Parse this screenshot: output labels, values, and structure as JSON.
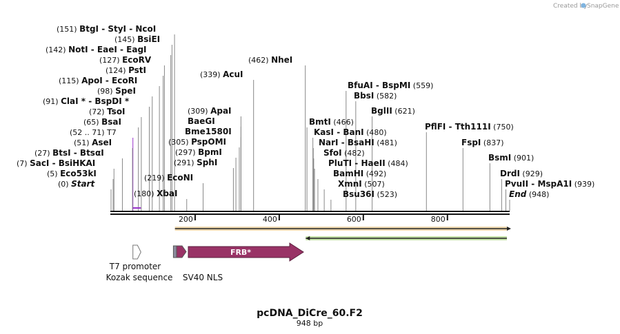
{
  "plasmid": {
    "name": "pcDNA_DiCre_60.F2",
    "length_label": "948 bp"
  },
  "credit": {
    "text": "Created by",
    "brand": "SnapGene"
  },
  "sequence_length": 948,
  "ruler": {
    "ticks": [
      200,
      400,
      600,
      800
    ]
  },
  "left_sites": [
    {
      "pos": "(151)",
      "labels": [
        "BtgI",
        "StyI",
        "NcoI"
      ],
      "site": 151
    },
    {
      "pos": "(145)",
      "labels": [
        "BsiEI"
      ],
      "site": 145
    },
    {
      "pos": "(142)",
      "labels": [
        "NotI",
        "EaeI",
        "EagI"
      ],
      "site": 142
    },
    {
      "pos": "(127)",
      "labels": [
        "EcoRV"
      ],
      "site": 127
    },
    {
      "pos": "(124)",
      "labels": [
        "PstI"
      ],
      "site": 124
    },
    {
      "pos": "(115)",
      "labels": [
        "ApoI",
        "EcoRI"
      ],
      "site": 115
    },
    {
      "pos": "(98)",
      "labels": [
        "SpeI"
      ],
      "site": 98
    },
    {
      "pos": "(91)",
      "labels": [
        "ClaI *",
        "BspDI *"
      ],
      "site": 91
    },
    {
      "pos": "(72)",
      "labels": [
        "TsoI"
      ],
      "site": 72
    },
    {
      "pos": "(65)",
      "labels": [
        "BsaI"
      ],
      "site": 65
    },
    {
      "pos": "(52 .. 71)",
      "labels": [
        "T7"
      ],
      "site": 52,
      "primer": true
    },
    {
      "pos": "(51)",
      "labels": [
        "AseI"
      ],
      "site": 51
    },
    {
      "pos": "(27)",
      "labels": [
        "BtsI",
        "BtsαI"
      ],
      "site": 27
    },
    {
      "pos": "(7)",
      "labels": [
        "SacI",
        "BsiHKAI"
      ],
      "site": 7
    },
    {
      "pos": "(5)",
      "labels": [
        "Eco53kI"
      ],
      "site": 5
    },
    {
      "pos": "(0)",
      "labels": [
        "Start"
      ],
      "site": 0,
      "italic": true
    }
  ],
  "mid_sites": [
    {
      "pos": "(462)",
      "labels": [
        "NheI"
      ],
      "site": 462,
      "side": "left"
    },
    {
      "pos": "(339)",
      "labels": [
        "AcuI"
      ],
      "site": 339,
      "side": "left"
    },
    {
      "pos": "(309)",
      "labels": [
        "ApaI"
      ],
      "site": 309,
      "side": "left"
    },
    {
      "pos": "",
      "labels": [
        "BaeGI"
      ],
      "site": 309,
      "side": "left"
    },
    {
      "pos": "",
      "labels": [
        "Bme1580I"
      ],
      "site": 309,
      "side": "left"
    },
    {
      "pos": "(305)",
      "labels": [
        "PspOMI"
      ],
      "site": 305,
      "side": "left"
    },
    {
      "pos": "(297)",
      "labels": [
        "BpmI"
      ],
      "site": 297,
      "side": "left"
    },
    {
      "pos": "(291)",
      "labels": [
        "SphI"
      ],
      "site": 291,
      "side": "left"
    },
    {
      "pos": "(219)",
      "labels": [
        "EcoNI"
      ],
      "site": 219,
      "side": "left"
    },
    {
      "pos": "(180)",
      "labels": [
        "XbaI"
      ],
      "site": 180,
      "side": "left"
    }
  ],
  "right_sites": [
    {
      "pos": "(559)",
      "labels": [
        "BfuAI",
        "BspMI"
      ],
      "site": 559
    },
    {
      "pos": "(582)",
      "labels": [
        "BbsI"
      ],
      "site": 582
    },
    {
      "pos": "(621)",
      "labels": [
        "BglII"
      ],
      "site": 621
    },
    {
      "pos": "(466)",
      "labels": [
        "BmtI"
      ],
      "site": 466
    },
    {
      "pos": "(480)",
      "labels": [
        "KasI",
        "BanI"
      ],
      "site": 480
    },
    {
      "pos": "(481)",
      "labels": [
        "NarI",
        "BsaHI"
      ],
      "site": 481
    },
    {
      "pos": "(482)",
      "labels": [
        "SfoI"
      ],
      "site": 482
    },
    {
      "pos": "(484)",
      "labels": [
        "PluTI",
        "HaeII"
      ],
      "site": 484
    },
    {
      "pos": "(492)",
      "labels": [
        "BamHI"
      ],
      "site": 492
    },
    {
      "pos": "(507)",
      "labels": [
        "XmnI"
      ],
      "site": 507
    },
    {
      "pos": "(523)",
      "labels": [
        "Bsu36I"
      ],
      "site": 523
    },
    {
      "pos": "(750)",
      "labels": [
        "PflFI",
        "Tth111I"
      ],
      "site": 750
    },
    {
      "pos": "(837)",
      "labels": [
        "FspI"
      ],
      "site": 837
    },
    {
      "pos": "(901)",
      "labels": [
        "BsmI"
      ],
      "site": 901
    },
    {
      "pos": "(929)",
      "labels": [
        "DrdI"
      ],
      "site": 929
    },
    {
      "pos": "(939)",
      "labels": [
        "PvuII",
        "MspA1I"
      ],
      "site": 939
    },
    {
      "pos": "(948)",
      "labels": [
        "End"
      ],
      "site": 948,
      "italic": true
    }
  ],
  "features": [
    {
      "name": "T7 promoter",
      "start": 52,
      "end": 71,
      "color": "#ffffff",
      "kind": "promoter"
    },
    {
      "name": "Kozak sequence",
      "start": 145,
      "end": 155,
      "color": "#8c8c9e",
      "kind": "box"
    },
    {
      "name": "SV40 NLS",
      "start": 160,
      "end": 181,
      "color": "#993366",
      "kind": "arrow-small"
    },
    {
      "name": "FRB*",
      "start": 185,
      "end": 463,
      "color": "#993366",
      "kind": "arrow"
    }
  ],
  "orfs": [
    {
      "start": 152,
      "end": 948,
      "direction": "forward",
      "color": "#d9a84e"
    },
    {
      "start": 463,
      "end": 948,
      "direction": "reverse",
      "color": "#7fbf3f"
    }
  ],
  "colors": {
    "primer": "#9933cc",
    "backbone": "#111111"
  }
}
